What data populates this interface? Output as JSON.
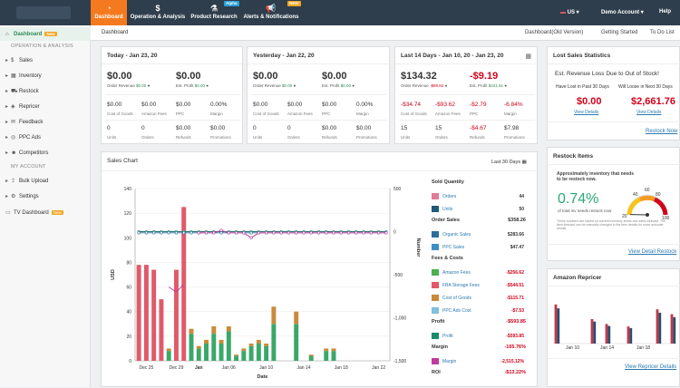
{
  "topnav": {
    "items": [
      {
        "label": "Dashboard",
        "icon": "dashboard-icon",
        "active": true
      },
      {
        "label": "Operation & Analysis",
        "icon": "dollar-icon"
      },
      {
        "label": "Product Research",
        "icon": "flask-icon",
        "badge": "Alpha"
      },
      {
        "label": "Alerts & Notifications",
        "icon": "megaphone-icon",
        "badge": "NEW"
      }
    ],
    "country": "US",
    "account": "Demo Account",
    "help": "Help"
  },
  "sidebar": {
    "items": [
      {
        "label": "Dashboard",
        "badge": "New",
        "active": true
      },
      {
        "label": "Sales"
      },
      {
        "label": "Inventory"
      },
      {
        "label": "Restock"
      },
      {
        "label": "Repricer"
      },
      {
        "label": "Feedback"
      },
      {
        "label": "PPC Ads"
      },
      {
        "label": "Competitors"
      },
      {
        "label": "Bulk Upload"
      },
      {
        "label": "Settings"
      },
      {
        "label": "TV Dashboard",
        "badge": "New"
      }
    ],
    "section_operation": "OPERATION & ANALYSIS",
    "section_account": "MY ACCOUNT"
  },
  "subbar": {
    "crumb": "Dashboard",
    "links": [
      "Dashboard(Old Version)",
      "Getting Started",
      "To Do List"
    ]
  },
  "today": {
    "title": "Today - Jan 23, 20",
    "revenue": "$0.00",
    "revenue_label": "Order Revenue",
    "revenue_change": "$0.00",
    "profit": "$0.00",
    "profit_label": "Est. Profit",
    "profit_change": "$0.00",
    "row2": [
      {
        "v": "$0.00",
        "l": "Cost of Goods"
      },
      {
        "v": "$0.00",
        "l": "Amazon Fees"
      },
      {
        "v": "$0.00",
        "l": "PPC"
      },
      {
        "v": "0.00%",
        "l": "Margin"
      }
    ],
    "row3": [
      {
        "v": "0",
        "l": "Units"
      },
      {
        "v": "0",
        "l": "Orders"
      },
      {
        "v": "$0.00",
        "l": "Refunds"
      },
      {
        "v": "$0.00",
        "l": "Promotions"
      }
    ]
  },
  "yesterday": {
    "title": "Yesterday - Jan 22, 20",
    "revenue": "$0.00",
    "revenue_label": "Order Revenue",
    "revenue_change": "$0.00",
    "profit": "$0.00",
    "profit_label": "Est. Profit",
    "profit_change": "$0.00",
    "row2": [
      {
        "v": "$0.00",
        "l": "Cost of Goods"
      },
      {
        "v": "$0.00",
        "l": "Amazon Fees"
      },
      {
        "v": "$0.00",
        "l": "PPC"
      },
      {
        "v": "0.00%",
        "l": "Margin"
      }
    ],
    "row3": [
      {
        "v": "0",
        "l": "Units"
      },
      {
        "v": "0",
        "l": "Orders"
      },
      {
        "v": "$0.00",
        "l": "Refunds"
      },
      {
        "v": "$0.00",
        "l": "Promotions"
      }
    ]
  },
  "last14": {
    "title": "Last 14 Days - Jan 10, 20 - Jan 23, 20",
    "revenue": "$134.32",
    "revenue_label": "Order Revenue",
    "revenue_change": "-$89.62",
    "profit": "-$9.19",
    "profit_label": "Est. Profit",
    "profit_change": "$421.61",
    "row2": [
      {
        "v": "-$34.74",
        "l": "Cost of Goods"
      },
      {
        "v": "-$93.62",
        "l": "Amazon Fees"
      },
      {
        "v": "-$2.79",
        "l": "PPC"
      },
      {
        "v": "-6.84%",
        "l": "Margin"
      }
    ],
    "row3": [
      {
        "v": "15",
        "l": "Units"
      },
      {
        "v": "15",
        "l": "Orders"
      },
      {
        "v": "-$4.67",
        "l": "Refunds"
      },
      {
        "v": "$7.98",
        "l": "Promotions"
      }
    ]
  },
  "lost_sales": {
    "title": "Lost Sales Statistics",
    "headline": "Est. Revenue Loss Due to Out of Stock!",
    "lost_label": "Have Lost in Past 30 Days",
    "lost_value": "$0.00",
    "will_label": "Will Loose in Next 30 Days",
    "will_value": "$2,661.76",
    "view_details": "View Details",
    "restock_now": "Restock Now"
  },
  "restock": {
    "title": "Restock Items",
    "desc": "Approximately inventory that needs to be restock now.",
    "percent": "0.74%",
    "percent_sub": "of total inv needs restock now",
    "note": "These numbers are based on current inventory levels and sales forecast. The item forecast can be manually changed in the item details for more accurate results",
    "gauge_labels": [
      "20",
      "40",
      "60",
      "80",
      "100"
    ],
    "gauge_value": 0.74,
    "link": "View Detail Restock"
  },
  "repricer": {
    "title": "Amazon Repricer",
    "x_labels": [
      "Jan 10",
      "Jan 14",
      "Jan 18"
    ],
    "link": "View Repricer Details"
  },
  "sales_chart": {
    "title": "Sales Chart",
    "range": "Last 30 Days",
    "sold_quantity": "Sold Quantity",
    "order_sales": "Order Sales",
    "fees_costs": "Fees & Costs",
    "profit_head": "Profit",
    "margin_head": "Margin",
    "roi_head": "ROI",
    "legend": [
      {
        "name": "Orders",
        "value": "44",
        "color": "#e07b9a"
      },
      {
        "name": "Units",
        "value": "50",
        "color": "#1f5a7a"
      },
      {
        "group": "order_sales",
        "value": "$358.26"
      },
      {
        "name": "Organic Sales",
        "value": "$283.66",
        "color": "#2a6f9c"
      },
      {
        "name": "PPC Sales",
        "value": "$47.47",
        "color": "#3d8fc6"
      },
      {
        "name": "Amazon Fees",
        "value": "-$256.62",
        "color": "#4caf50"
      },
      {
        "name": "FBA Storage Fees",
        "value": "-$544.51",
        "color": "#e05a6a"
      },
      {
        "name": "Cost of Goods",
        "value": "-$115.71",
        "color": "#c98a3a"
      },
      {
        "name": "PPC Ads Cost",
        "value": "-$7.53",
        "color": "#7fbfe0"
      },
      {
        "name": "Profit",
        "value": "-$593.85",
        "color": "#1a8a6a"
      },
      {
        "name": "Margin",
        "value": "-2,515.12%",
        "color": "#c03aa0"
      },
      {
        "group": "profit",
        "value": "-$593.85"
      },
      {
        "group": "margin",
        "value": "-165.76%"
      },
      {
        "group": "roi",
        "value": "-$13.22%"
      }
    ]
  },
  "chart_data": {
    "type": "bar",
    "title": "",
    "xlabel": "Date",
    "ylabel": "USD",
    "y2label": "Number",
    "ylim": [
      0,
      140
    ],
    "y2lim": [
      -1500,
      500
    ],
    "yticks": [
      0,
      20,
      40,
      60,
      80,
      100,
      120,
      140
    ],
    "y2ticks": [
      "500",
      "0",
      "-500",
      "-1,000",
      "-1,500"
    ],
    "x_tick_labels": [
      "Dec 25",
      "Dec 29",
      "Jan",
      "Jan 06",
      "Jan 10",
      "Jan 14",
      "Jan 18",
      "Jan 22"
    ],
    "x_tick_positions": [
      1,
      5,
      8,
      12,
      17,
      22,
      27,
      32
    ],
    "n_days": 34,
    "fba_storage": [
      78,
      78,
      74,
      50,
      0,
      74,
      125,
      0,
      0,
      0,
      0,
      0,
      0,
      0,
      0,
      0,
      0,
      0,
      0,
      0,
      0,
      0,
      0,
      0,
      0,
      0,
      0,
      0,
      0,
      0,
      0,
      0,
      0,
      0
    ],
    "amazon_fees": [
      0,
      0,
      0,
      0,
      8,
      0,
      0,
      22,
      10,
      14,
      22,
      14,
      24,
      4,
      8,
      12,
      14,
      12,
      30,
      0,
      0,
      30,
      0,
      4,
      0,
      8,
      8,
      0,
      0,
      0,
      0,
      0,
      0,
      0
    ],
    "cost_of_goods": [
      0,
      0,
      0,
      0,
      2,
      0,
      0,
      4,
      2,
      3,
      6,
      3,
      4,
      1,
      2,
      2,
      3,
      2,
      14,
      0,
      0,
      10,
      0,
      1,
      0,
      2,
      2,
      0,
      0,
      0,
      0,
      0,
      0,
      0
    ],
    "orders_line": [
      104,
      104,
      104,
      104,
      104,
      104,
      104,
      104,
      104,
      104,
      104,
      104,
      104,
      104,
      104,
      104,
      104,
      104,
      104,
      104,
      104,
      104,
      104,
      104,
      104,
      104,
      104,
      104,
      104,
      104,
      104,
      104,
      104,
      104
    ],
    "units_line": [
      105,
      105,
      105,
      105,
      105,
      105,
      105,
      105,
      105,
      105,
      105,
      105,
      105,
      105,
      105,
      105,
      105,
      105,
      105,
      105,
      105,
      105,
      105,
      105,
      105,
      105,
      105,
      105,
      105,
      105,
      105,
      105,
      105,
      105
    ],
    "margin_line": [
      null,
      null,
      null,
      null,
      null,
      null,
      null,
      null,
      104,
      104,
      104,
      106,
      104,
      104,
      104,
      100,
      104,
      104,
      104,
      104,
      104,
      104,
      104,
      104,
      104,
      104,
      104,
      104,
      104,
      104,
      104,
      104,
      104,
      104
    ]
  },
  "repricer_chart": {
    "type": "bar",
    "values": [
      80,
      0,
      0,
      0,
      0,
      50,
      0,
      40,
      0,
      0,
      35,
      0,
      0,
      0,
      70,
      0,
      60
    ]
  }
}
